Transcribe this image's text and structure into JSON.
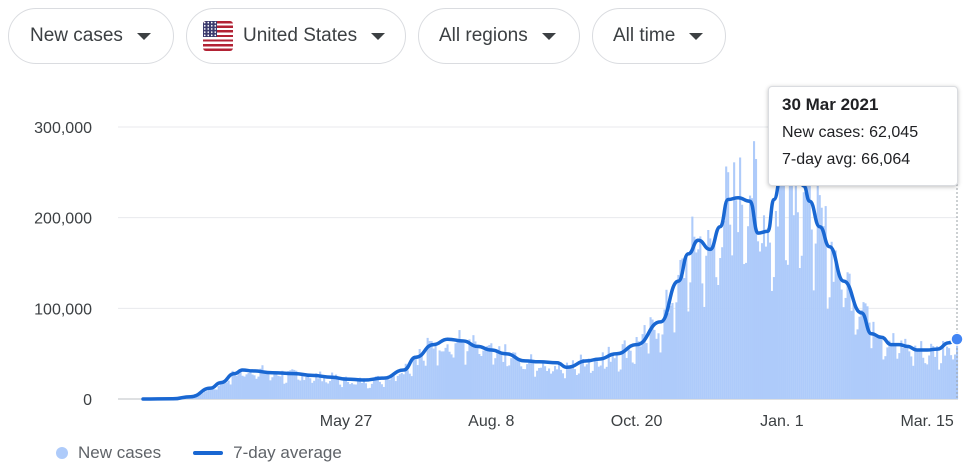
{
  "controls": {
    "metric": "New cases",
    "country": "United States",
    "region": "All regions",
    "period": "All time"
  },
  "colors": {
    "bar": "#aecbfa",
    "line": "#1967d2",
    "grid": "#e8eaed"
  },
  "tooltip": {
    "date": "30 Mar 2021",
    "cases_label": "New cases:",
    "cases_value": "62,045",
    "avg_label": "7-day avg:",
    "avg_value": "66,064"
  },
  "legend": {
    "bars": "New cases",
    "line": "7-day average"
  },
  "chart_data": {
    "type": "bar",
    "x_ticks": [
      "May 27",
      "Aug. 8",
      "Oct. 20",
      "Jan. 1",
      "Mar. 15"
    ],
    "y_ticks": [
      "0",
      "100,000",
      "200,000",
      "300,000"
    ],
    "ylim": [
      0,
      300000
    ],
    "grid": true,
    "legend_position": "bottom-left",
    "series": [
      {
        "name": "New cases",
        "type": "bar",
        "x": [
          "2020-02-15",
          "2020-03-01",
          "2020-03-10",
          "2020-03-20",
          "2020-03-25",
          "2020-04-01",
          "2020-04-05",
          "2020-04-10",
          "2020-04-20",
          "2020-05-01",
          "2020-05-10",
          "2020-05-20",
          "2020-05-27",
          "2020-06-05",
          "2020-06-15",
          "2020-06-25",
          "2020-07-01",
          "2020-07-10",
          "2020-07-17",
          "2020-07-25",
          "2020-08-01",
          "2020-08-08",
          "2020-08-15",
          "2020-08-25",
          "2020-09-01",
          "2020-09-10",
          "2020-09-15",
          "2020-09-25",
          "2020-10-01",
          "2020-10-10",
          "2020-10-20",
          "2020-11-01",
          "2020-11-10",
          "2020-11-15",
          "2020-11-20",
          "2020-11-26",
          "2020-12-01",
          "2020-12-05",
          "2020-12-10",
          "2020-12-16",
          "2020-12-20",
          "2020-12-25",
          "2020-12-28",
          "2021-01-01",
          "2021-01-05",
          "2021-01-08",
          "2021-01-12",
          "2021-01-15",
          "2021-01-20",
          "2021-01-25",
          "2021-02-01",
          "2021-02-10",
          "2021-02-15",
          "2021-02-20",
          "2021-02-25",
          "2021-03-01",
          "2021-03-05",
          "2021-03-10",
          "2021-03-15",
          "2021-03-20",
          "2021-03-26",
          "2021-03-30"
        ],
        "values": [
          0,
          200,
          2500,
          12000,
          18000,
          28000,
          32000,
          33000,
          29000,
          27000,
          26000,
          24000,
          21000,
          20000,
          23000,
          35000,
          46000,
          62000,
          66000,
          64000,
          58000,
          52000,
          50000,
          41000,
          40000,
          38000,
          34000,
          45000,
          45000,
          52000,
          62000,
          85000,
          130000,
          160000,
          178000,
          160000,
          190000,
          225000,
          225000,
          240000,
          230000,
          190000,
          185000,
          250000,
          268000,
          255000,
          235000,
          225000,
          195000,
          170000,
          135000,
          110000,
          95000,
          75000,
          65000,
          60000,
          60000,
          55000,
          55000,
          53000,
          62000,
          62045
        ]
      },
      {
        "name": "7-day average",
        "type": "line",
        "x": [
          "2020-02-15",
          "2020-03-01",
          "2020-03-10",
          "2020-03-20",
          "2020-03-25",
          "2020-04-01",
          "2020-04-05",
          "2020-04-10",
          "2020-04-20",
          "2020-05-01",
          "2020-05-10",
          "2020-05-20",
          "2020-05-27",
          "2020-06-05",
          "2020-06-15",
          "2020-06-25",
          "2020-07-01",
          "2020-07-10",
          "2020-07-17",
          "2020-07-25",
          "2020-08-01",
          "2020-08-08",
          "2020-08-15",
          "2020-08-25",
          "2020-09-01",
          "2020-09-10",
          "2020-09-15",
          "2020-09-25",
          "2020-10-01",
          "2020-10-10",
          "2020-10-20",
          "2020-11-01",
          "2020-11-10",
          "2020-11-15",
          "2020-11-20",
          "2020-11-26",
          "2020-12-01",
          "2020-12-05",
          "2020-12-10",
          "2020-12-16",
          "2020-12-20",
          "2020-12-25",
          "2020-12-28",
          "2021-01-01",
          "2021-01-05",
          "2021-01-08",
          "2021-01-12",
          "2021-01-15",
          "2021-01-20",
          "2021-01-25",
          "2021-02-01",
          "2021-02-10",
          "2021-02-15",
          "2021-02-20",
          "2021-02-25",
          "2021-03-01",
          "2021-03-05",
          "2021-03-10",
          "2021-03-15",
          "2021-03-20",
          "2021-03-26",
          "2021-03-30"
        ],
        "values": [
          0,
          200,
          2500,
          12000,
          18000,
          28000,
          32000,
          31000,
          29000,
          28000,
          26000,
          24000,
          22000,
          21000,
          23000,
          32000,
          46000,
          60000,
          66000,
          64000,
          58000,
          54000,
          50000,
          42000,
          41000,
          40000,
          35000,
          42000,
          44000,
          50000,
          60000,
          85000,
          130000,
          160000,
          175000,
          165000,
          190000,
          220000,
          222000,
          218000,
          183000,
          185000,
          220000,
          250000,
          268000,
          255000,
          235000,
          218000,
          190000,
          168000,
          130000,
          95000,
          72000,
          68000,
          60000,
          60000,
          58000,
          54000,
          54000,
          55000,
          62000,
          66064
        ]
      }
    ]
  }
}
